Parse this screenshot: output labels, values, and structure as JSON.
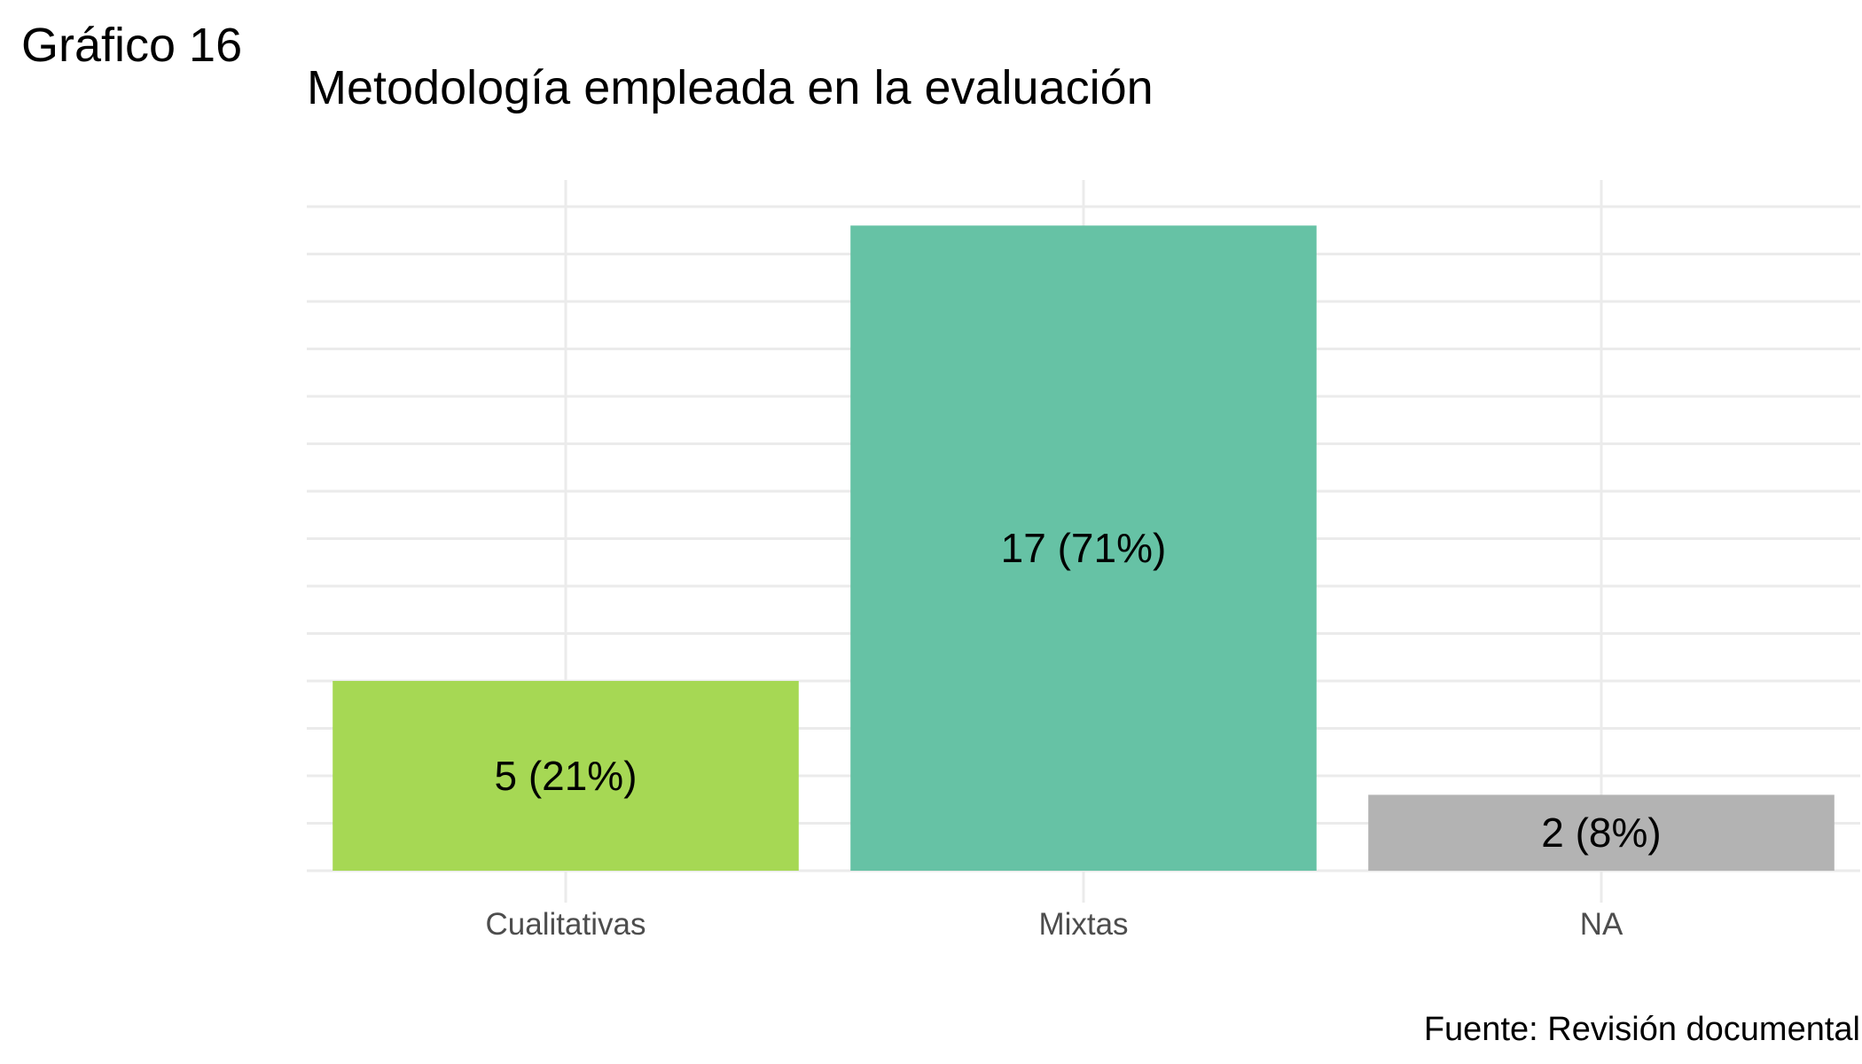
{
  "figure_label": "Gráfico 16",
  "source": "Fuente: Revisión documental",
  "chart_data": {
    "type": "bar",
    "title": "Metodología empleada en la evaluación",
    "xlabel": "",
    "ylabel": "",
    "categories": [
      "Cualitativas",
      "Mixtas",
      "NA"
    ],
    "values": [
      5,
      17,
      2
    ],
    "data_labels": [
      "5 (21%)",
      "17 (71%)",
      "2 (8%)"
    ],
    "colors": [
      "#a6d854",
      "#66c2a5",
      "#b3b3b3"
    ],
    "ylim": [
      0,
      17.85
    ],
    "y_grid_step": 2.5,
    "y_tick_labels_shown": false,
    "grid": true,
    "legend": "none"
  }
}
